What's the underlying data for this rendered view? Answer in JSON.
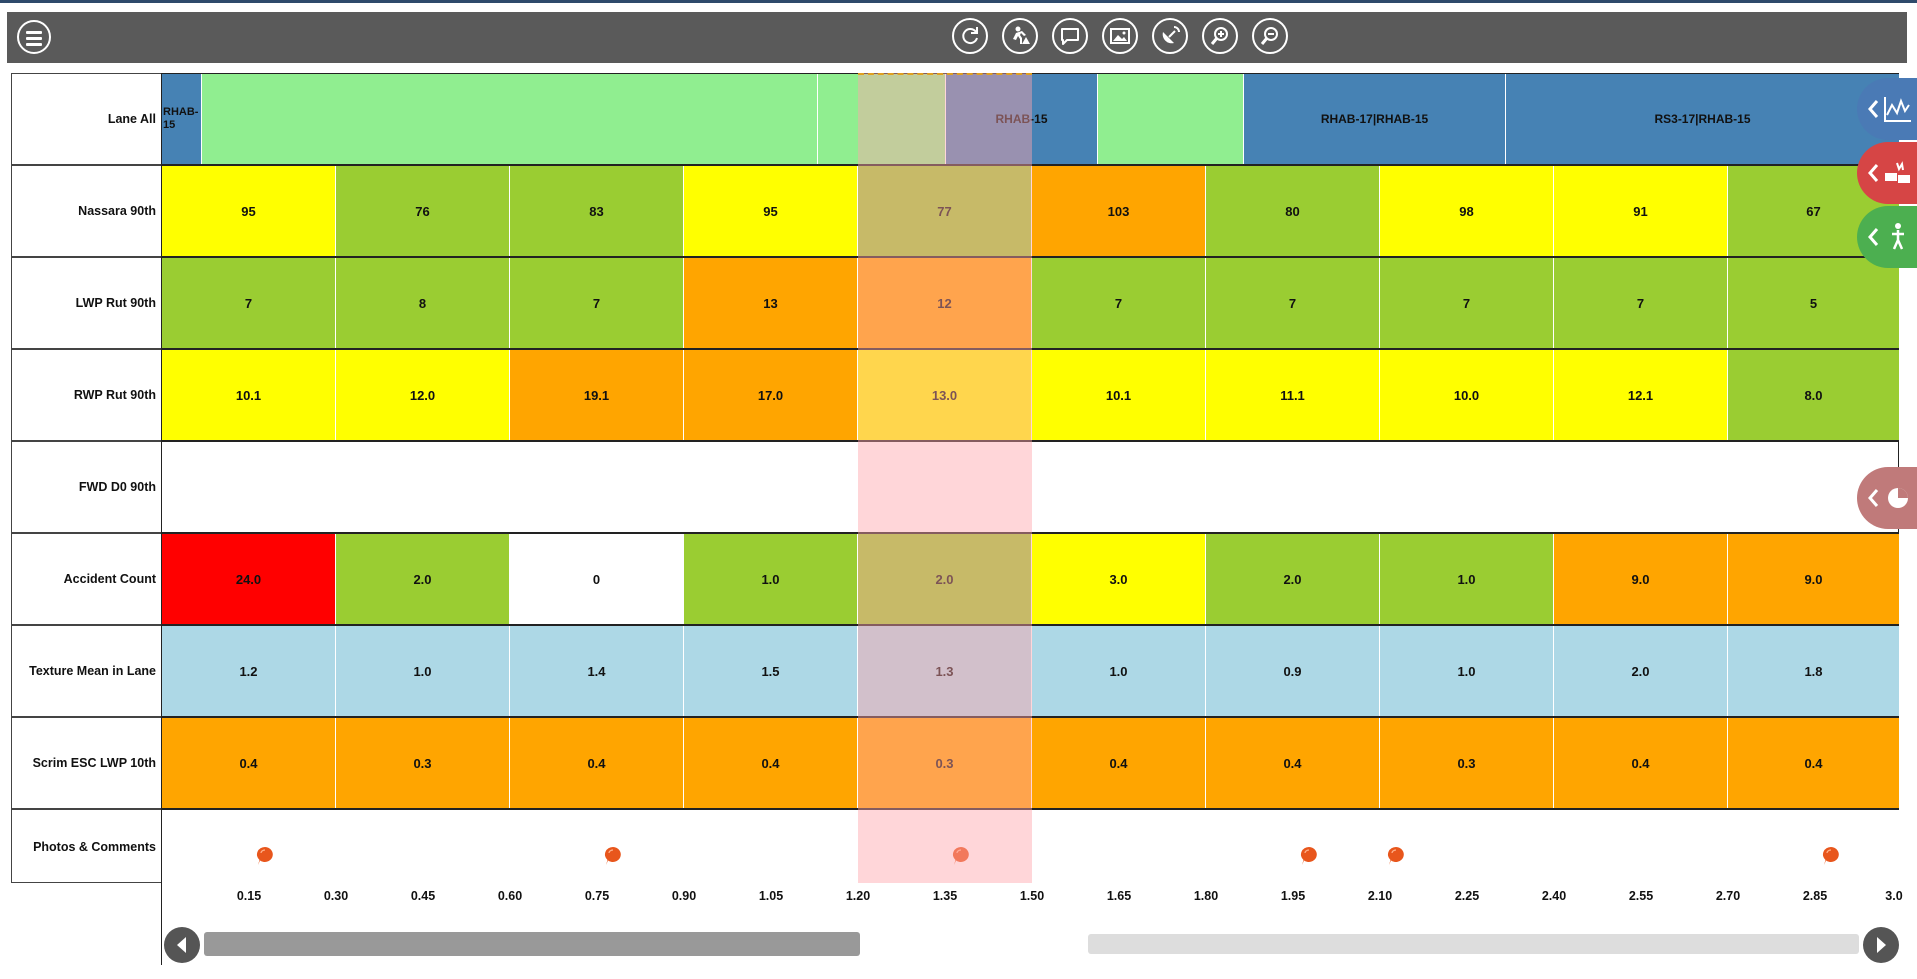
{
  "toolbar": {
    "menu_icon": "hamburger-menu-icon",
    "tools": [
      "refresh-icon",
      "road-worker-icon",
      "comment-icon",
      "photos-icon",
      "satellite-icon",
      "zoom-in-icon",
      "zoom-out-icon"
    ]
  },
  "rows": {
    "lane": {
      "label": "Lane All"
    },
    "nassara": {
      "label": "Nassara 90th"
    },
    "lwp": {
      "label": "LWP Rut 90th"
    },
    "rwp": {
      "label": "RWP Rut 90th"
    },
    "fwd": {
      "label": "FWD D0 90th"
    },
    "accident": {
      "label": "Accident Count"
    },
    "texture": {
      "label": "Texture Mean in Lane"
    },
    "scrim": {
      "label": "Scrim ESC LWP 10th"
    },
    "photos": {
      "label": "Photos & Comments"
    }
  },
  "lane_segments": [
    {
      "label": "RHAB-15",
      "display": "RHAB-\n15",
      "color": "#4682b4"
    },
    {
      "label": "",
      "color": "#90ee90"
    },
    {
      "label": "",
      "color": "#90ee90"
    },
    {
      "label": "RHAB-15",
      "color": "#4682b4"
    },
    {
      "label": "",
      "color": "#90ee90"
    },
    {
      "label": "RHAB-17|RHAB-15",
      "color": "#4682b4"
    },
    {
      "label": "RS3-17|RHAB-15",
      "color": "#4682b4"
    }
  ],
  "nassara_values": [
    "95",
    "76",
    "83",
    "95",
    "77",
    "103",
    "80",
    "98",
    "91",
    "67"
  ],
  "lwp_values": [
    "7",
    "8",
    "7",
    "13",
    "12",
    "7",
    "7",
    "7",
    "7",
    "5"
  ],
  "rwp_values": [
    "10.1",
    "12.0",
    "19.1",
    "17.0",
    "13.0",
    "10.1",
    "11.1",
    "10.0",
    "12.1",
    "8.0"
  ],
  "accident_values": [
    "24.0",
    "2.0",
    "0",
    "1.0",
    "2.0",
    "3.0",
    "2.0",
    "1.0",
    "9.0",
    "9.0"
  ],
  "texture_values": [
    "1.2",
    "1.0",
    "1.4",
    "1.5",
    "1.3",
    "1.0",
    "0.9",
    "1.0",
    "2.0",
    "1.8"
  ],
  "scrim_values": [
    "0.4",
    "0.3",
    "0.4",
    "0.4",
    "0.3",
    "0.4",
    "0.4",
    "0.3",
    "0.4",
    "0.4"
  ],
  "colors": {
    "yellow": "#ffff00",
    "green": "#9acd32",
    "orange": "#ffa500",
    "red": "#ff0000",
    "white": "#ffffff",
    "lightblue": "#add8e6",
    "lane_green": "#90ee90",
    "lane_blue": "#4682b4",
    "pin": "#e8561c"
  },
  "cell_colors": {
    "nassara": [
      "yellow",
      "green",
      "green",
      "yellow",
      "green",
      "orange",
      "green",
      "yellow",
      "yellow",
      "green"
    ],
    "lwp": [
      "green",
      "green",
      "green",
      "orange",
      "orange",
      "green",
      "green",
      "green",
      "green",
      "green"
    ],
    "rwp": [
      "yellow",
      "yellow",
      "orange",
      "orange",
      "yellow",
      "yellow",
      "yellow",
      "yellow",
      "yellow",
      "green"
    ],
    "accident": [
      "red",
      "green",
      "white",
      "green",
      "green",
      "yellow",
      "green",
      "green",
      "orange",
      "orange"
    ],
    "texture": [
      "lightblue",
      "lightblue",
      "lightblue",
      "lightblue",
      "lightblue",
      "lightblue",
      "lightblue",
      "lightblue",
      "lightblue",
      "lightblue"
    ],
    "scrim": [
      "orange",
      "orange",
      "orange",
      "orange",
      "orange",
      "orange",
      "orange",
      "orange",
      "orange",
      "orange"
    ]
  },
  "axis_ticks": [
    "0.15",
    "0.30",
    "0.45",
    "0.60",
    "0.75",
    "0.90",
    "1.05",
    "1.20",
    "1.35",
    "1.50",
    "1.65",
    "1.80",
    "1.95",
    "2.10",
    "2.25",
    "2.40",
    "2.55",
    "2.70",
    "2.85",
    "3.0"
  ],
  "axis_range": [
    0,
    3.0
  ],
  "selected_range": [
    1.2,
    1.5
  ],
  "comment_positions": [
    0.15,
    0.75,
    1.35,
    1.95,
    2.1,
    2.85
  ],
  "side_buttons": [
    {
      "icon": "chart-icon",
      "color": "#4a7ab5"
    },
    {
      "icon": "accident-icon",
      "color": "#d64545"
    },
    {
      "icon": "pedestrian-icon",
      "color": "#4caf50"
    },
    {
      "icon": "pie-chart-icon",
      "color": "#c07a7a"
    }
  ],
  "scrollbar": {
    "position": 0.33
  }
}
